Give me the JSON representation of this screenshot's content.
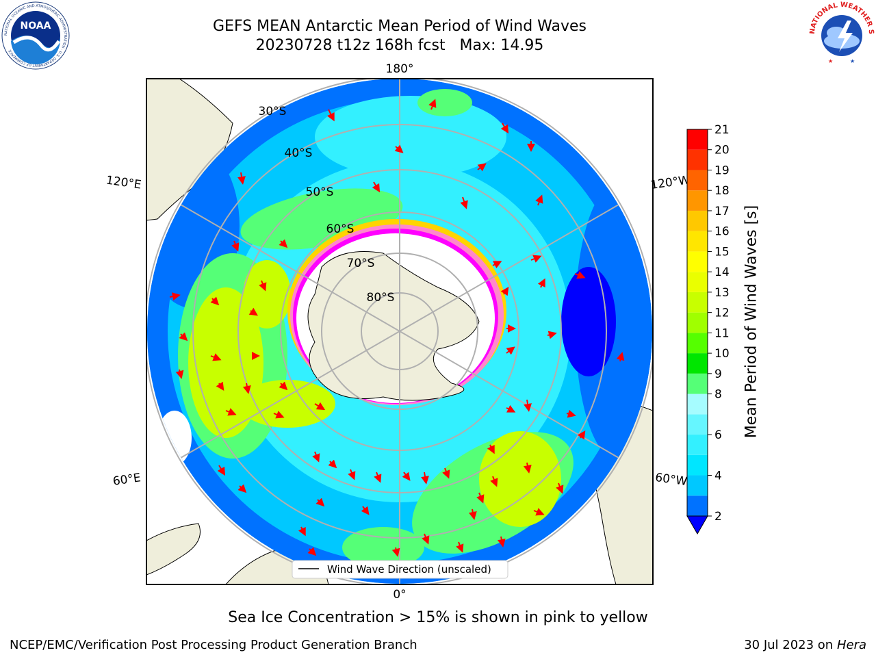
{
  "title": {
    "line1": "GEFS MEAN Antarctic Mean Period of Wind Waves",
    "line2": "20230728 t12z 168h fcst   Max: 14.95"
  },
  "map": {
    "projection": "south-polar-stereographic",
    "longitude_labels": [
      "180°",
      "120°E",
      "120°W",
      "60°E",
      "60°W",
      "0°"
    ],
    "latitude_labels": [
      "30°S",
      "40°S",
      "50°S",
      "60°S",
      "70°S",
      "80°S"
    ],
    "legend_entry": "Wind Wave Direction (unscaled)",
    "land_color": "#efeedb",
    "ice_colors": [
      "#ff00ff",
      "#ff88cc",
      "#ffd400"
    ]
  },
  "colorbar": {
    "label": "Mean Period of Wind Waves [s]",
    "ticks": [
      "21",
      "20",
      "19",
      "18",
      "17",
      "16",
      "15",
      "14",
      "13",
      "12",
      "11",
      "10",
      "9",
      "8",
      "6",
      "4",
      "2"
    ],
    "levels": [
      2,
      3,
      4,
      5,
      6,
      7,
      8,
      9,
      10,
      11,
      12,
      13,
      14,
      15,
      16,
      17,
      18,
      19,
      20,
      21
    ],
    "colors_low_to_high": [
      "#0072ff",
      "#00c8ff",
      "#00e6ff",
      "#33f0ff",
      "#66f6ff",
      "#a6fcff",
      "#55ff77",
      "#00e600",
      "#55ff00",
      "#a0ff00",
      "#c8ff00",
      "#eaff00",
      "#ffff00",
      "#ffe600",
      "#ffc800",
      "#ff9600",
      "#ff6400",
      "#ff3200",
      "#ff0000"
    ],
    "under_color": "#0000ff",
    "extend": "min"
  },
  "notes": {
    "sea_ice": "Sea Ice Concentration > 15% is shown in pink to yellow"
  },
  "footer": {
    "left": "NCEP/EMC/Verification Post Processing Product Generation Branch",
    "date": "30 Jul 2023 on ",
    "machine": "Hera"
  },
  "logos": {
    "noaa_text": "NOAA",
    "noaa_ring_text": "NATIONAL OCEANIC AND ATMOSPHERIC ADMINISTRATION · U.S. DEPARTMENT OF COMMERCE",
    "nws_ring_text": "NATIONAL WEATHER SERVICE"
  }
}
